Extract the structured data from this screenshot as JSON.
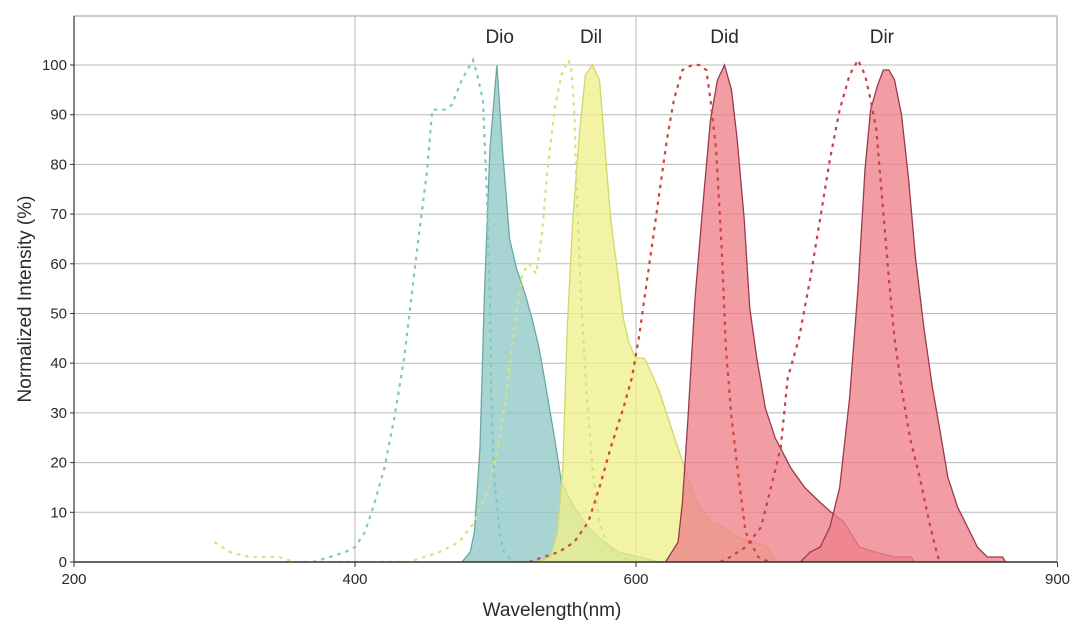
{
  "chart_data": {
    "type": "area",
    "title": "",
    "xlabel": "Wavelength(nm)",
    "ylabel": "Normalized Intensity (%)",
    "xlim": [
      200,
      900
    ],
    "ylim": [
      0,
      110
    ],
    "x_ticks": [
      200,
      400,
      600,
      900
    ],
    "y_ticks": [
      0,
      10,
      20,
      30,
      40,
      50,
      60,
      70,
      80,
      90,
      100
    ],
    "grid": true,
    "legend": "inline labels above peaks",
    "labels": [
      {
        "text": "Dio",
        "x": 503,
        "y": 105
      },
      {
        "text": "Dil",
        "x": 568,
        "y": 105
      },
      {
        "text": "Did",
        "x": 663,
        "y": 105
      },
      {
        "text": "Dir",
        "x": 775,
        "y": 105
      }
    ],
    "series": [
      {
        "name": "Dio excitation",
        "style": "dotted",
        "color": "#7fc8c0",
        "points": [
          [
            370,
            0
          ],
          [
            382,
            1
          ],
          [
            393,
            2
          ],
          [
            400,
            3
          ],
          [
            407,
            6
          ],
          [
            414,
            12
          ],
          [
            421,
            19
          ],
          [
            428,
            29
          ],
          [
            435,
            41
          ],
          [
            440,
            53
          ],
          [
            446,
            67
          ],
          [
            451,
            78
          ],
          [
            455,
            91
          ],
          [
            464,
            91
          ],
          [
            469,
            92
          ],
          [
            476,
            97
          ],
          [
            484,
            101
          ],
          [
            487,
            98
          ],
          [
            491,
            93
          ],
          [
            494,
            73
          ],
          [
            496,
            53
          ],
          [
            497,
            33
          ],
          [
            499,
            17
          ],
          [
            503,
            6
          ],
          [
            506,
            2
          ],
          [
            513,
            0
          ],
          [
            524,
            0
          ]
        ]
      },
      {
        "name": "Dio emission",
        "style": "filled",
        "color": "#8fc9c6",
        "stroke": "#6aa8a4",
        "points": [
          [
            476,
            0
          ],
          [
            479,
            1
          ],
          [
            482,
            2
          ],
          [
            485,
            6
          ],
          [
            489,
            23
          ],
          [
            492,
            53
          ],
          [
            496,
            83
          ],
          [
            501,
            100
          ],
          [
            505,
            83
          ],
          [
            510,
            65
          ],
          [
            515,
            59
          ],
          [
            521,
            54
          ],
          [
            526,
            49
          ],
          [
            531,
            43
          ],
          [
            536,
            35
          ],
          [
            542,
            25
          ],
          [
            547,
            16
          ],
          [
            556,
            11
          ],
          [
            566,
            7
          ],
          [
            577,
            4
          ],
          [
            588,
            2
          ],
          [
            602,
            1
          ],
          [
            616,
            0
          ],
          [
            631,
            0
          ]
        ]
      },
      {
        "name": "Dil excitation",
        "style": "dotted",
        "color": "#d8e27a",
        "points": [
          [
            300,
            4
          ],
          [
            311,
            2
          ],
          [
            325,
            1
          ],
          [
            346,
            1
          ],
          [
            357,
            0
          ],
          [
            403,
            0
          ],
          [
            438,
            0
          ],
          [
            460,
            2
          ],
          [
            474,
            4
          ],
          [
            485,
            8
          ],
          [
            494,
            14
          ],
          [
            501,
            22
          ],
          [
            507,
            32
          ],
          [
            511,
            42
          ],
          [
            516,
            52
          ],
          [
            519,
            58
          ],
          [
            524,
            60
          ],
          [
            529,
            58
          ],
          [
            533,
            66
          ],
          [
            537,
            79
          ],
          [
            542,
            91
          ],
          [
            547,
            98
          ],
          [
            552,
            101
          ],
          [
            554,
            99
          ],
          [
            556,
            91
          ],
          [
            558,
            73
          ],
          [
            561,
            53
          ],
          [
            565,
            33
          ],
          [
            569,
            19
          ],
          [
            574,
            8
          ],
          [
            580,
            3
          ],
          [
            588,
            1
          ],
          [
            602,
            0
          ],
          [
            616,
            0
          ]
        ]
      },
      {
        "name": "Dil emission",
        "style": "filled",
        "color": "#eef08a",
        "stroke": "#cfd96a",
        "points": [
          [
            530,
            0
          ],
          [
            539,
            1
          ],
          [
            544,
            6
          ],
          [
            548,
            19
          ],
          [
            551,
            47
          ],
          [
            555,
            69
          ],
          [
            560,
            87
          ],
          [
            564,
            98
          ],
          [
            569,
            100
          ],
          [
            574,
            97
          ],
          [
            578,
            83
          ],
          [
            582,
            69
          ],
          [
            587,
            58
          ],
          [
            591,
            49
          ],
          [
            595,
            44
          ],
          [
            600,
            41
          ],
          [
            606,
            41
          ],
          [
            611,
            38
          ],
          [
            617,
            34
          ],
          [
            624,
            28
          ],
          [
            631,
            22
          ],
          [
            638,
            16
          ],
          [
            645,
            11
          ],
          [
            653,
            8
          ],
          [
            662,
            7
          ],
          [
            672,
            5
          ],
          [
            683,
            4
          ],
          [
            694,
            3
          ],
          [
            697,
            1
          ],
          [
            701,
            0
          ]
        ]
      },
      {
        "name": "Did excitation",
        "style": "dotted",
        "color": "#d0453c",
        "points": [
          [
            524,
            0
          ],
          [
            534,
            1
          ],
          [
            545,
            2
          ],
          [
            556,
            4
          ],
          [
            566,
            8
          ],
          [
            574,
            15
          ],
          [
            582,
            23
          ],
          [
            591,
            31
          ],
          [
            597,
            37
          ],
          [
            602,
            45
          ],
          [
            606,
            53
          ],
          [
            611,
            63
          ],
          [
            616,
            73
          ],
          [
            622,
            85
          ],
          [
            627,
            93
          ],
          [
            633,
            99
          ],
          [
            640,
            100
          ],
          [
            645,
            100
          ],
          [
            650,
            99
          ],
          [
            653,
            93
          ],
          [
            657,
            83
          ],
          [
            661,
            63
          ],
          [
            664,
            43
          ],
          [
            668,
            29
          ],
          [
            673,
            17
          ],
          [
            678,
            6
          ],
          [
            687,
            1
          ],
          [
            695,
            0
          ]
        ]
      },
      {
        "name": "Did emission",
        "style": "filled",
        "color": "#ee808a",
        "stroke": "#9a3a4e",
        "points": [
          [
            610,
            0
          ],
          [
            621,
            0
          ],
          [
            630,
            4
          ],
          [
            633,
            12
          ],
          [
            637,
            29
          ],
          [
            642,
            53
          ],
          [
            648,
            73
          ],
          [
            653,
            89
          ],
          [
            658,
            97
          ],
          [
            663,
            100
          ],
          [
            668,
            95
          ],
          [
            672,
            85
          ],
          [
            677,
            69
          ],
          [
            681,
            51
          ],
          [
            686,
            41
          ],
          [
            692,
            31
          ],
          [
            699,
            25
          ],
          [
            710,
            19
          ],
          [
            720,
            15
          ],
          [
            731,
            12
          ],
          [
            739,
            10
          ],
          [
            748,
            8
          ],
          [
            759,
            3
          ],
          [
            770,
            2
          ],
          [
            784,
            1
          ],
          [
            796,
            1
          ],
          [
            798,
            0
          ]
        ]
      },
      {
        "name": "Dir excitation",
        "style": "dotted",
        "color": "#c9404a",
        "points": [
          [
            660,
            0
          ],
          [
            667,
            1
          ],
          [
            678,
            3
          ],
          [
            689,
            7
          ],
          [
            696,
            15
          ],
          [
            703,
            23
          ],
          [
            708,
            37
          ],
          [
            716,
            45
          ],
          [
            724,
            57
          ],
          [
            731,
            69
          ],
          [
            738,
            81
          ],
          [
            745,
            91
          ],
          [
            752,
            98
          ],
          [
            758,
            101
          ],
          [
            763,
            98
          ],
          [
            767,
            93
          ],
          [
            771,
            87
          ],
          [
            774,
            77
          ],
          [
            777,
            67
          ],
          [
            780,
            57
          ],
          [
            784,
            45
          ],
          [
            789,
            35
          ],
          [
            795,
            25
          ],
          [
            802,
            17
          ],
          [
            808,
            9
          ],
          [
            813,
            3
          ],
          [
            816,
            0
          ]
        ]
      },
      {
        "name": "Dir emission",
        "style": "filled",
        "color": "#ee808a",
        "stroke": "#9a3a4e",
        "points": [
          [
            710,
            0
          ],
          [
            717,
            0
          ],
          [
            724,
            2
          ],
          [
            731,
            3
          ],
          [
            738,
            7
          ],
          [
            745,
            15
          ],
          [
            752,
            33
          ],
          [
            758,
            55
          ],
          [
            763,
            79
          ],
          [
            767,
            91
          ],
          [
            772,
            96
          ],
          [
            776,
            99
          ],
          [
            780,
            99
          ],
          [
            784,
            97
          ],
          [
            789,
            90
          ],
          [
            794,
            77
          ],
          [
            799,
            61
          ],
          [
            805,
            47
          ],
          [
            811,
            35
          ],
          [
            816,
            27
          ],
          [
            822,
            17
          ],
          [
            829,
            11
          ],
          [
            836,
            7
          ],
          [
            843,
            3
          ],
          [
            850,
            1
          ],
          [
            861,
            1
          ],
          [
            863,
            0
          ]
        ]
      }
    ]
  },
  "overlap_fills": [
    {
      "name": "Dio-Dil overlap",
      "color": "#c8df9a"
    },
    {
      "name": "Dil-Did overlap",
      "color": "#f09a78"
    },
    {
      "name": "Did-Dir overlap",
      "color": "#e85e6a"
    }
  ]
}
